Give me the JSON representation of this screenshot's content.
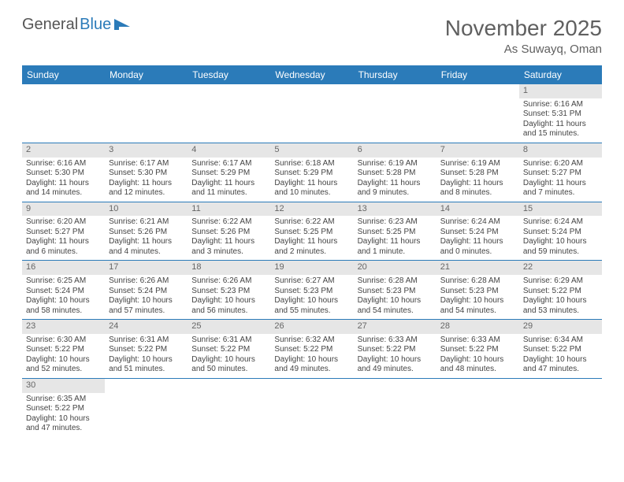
{
  "logo": {
    "text1": "General",
    "text2": "Blue"
  },
  "title": "November 2025",
  "location": "As Suwayq, Oman",
  "colors": {
    "header_bg": "#2b7bb9",
    "header_text": "#ffffff",
    "daynum_bg": "#e6e6e6",
    "row_border": "#2b7bb9",
    "page_bg": "#ffffff",
    "text": "#444444"
  },
  "weekdays": [
    "Sunday",
    "Monday",
    "Tuesday",
    "Wednesday",
    "Thursday",
    "Friday",
    "Saturday"
  ],
  "firstDayOffset": 6,
  "days": [
    {
      "n": 1,
      "sunrise": "6:16 AM",
      "sunset": "5:31 PM",
      "daylight": "11 hours and 15 minutes."
    },
    {
      "n": 2,
      "sunrise": "6:16 AM",
      "sunset": "5:30 PM",
      "daylight": "11 hours and 14 minutes."
    },
    {
      "n": 3,
      "sunrise": "6:17 AM",
      "sunset": "5:30 PM",
      "daylight": "11 hours and 12 minutes."
    },
    {
      "n": 4,
      "sunrise": "6:17 AM",
      "sunset": "5:29 PM",
      "daylight": "11 hours and 11 minutes."
    },
    {
      "n": 5,
      "sunrise": "6:18 AM",
      "sunset": "5:29 PM",
      "daylight": "11 hours and 10 minutes."
    },
    {
      "n": 6,
      "sunrise": "6:19 AM",
      "sunset": "5:28 PM",
      "daylight": "11 hours and 9 minutes."
    },
    {
      "n": 7,
      "sunrise": "6:19 AM",
      "sunset": "5:28 PM",
      "daylight": "11 hours and 8 minutes."
    },
    {
      "n": 8,
      "sunrise": "6:20 AM",
      "sunset": "5:27 PM",
      "daylight": "11 hours and 7 minutes."
    },
    {
      "n": 9,
      "sunrise": "6:20 AM",
      "sunset": "5:27 PM",
      "daylight": "11 hours and 6 minutes."
    },
    {
      "n": 10,
      "sunrise": "6:21 AM",
      "sunset": "5:26 PM",
      "daylight": "11 hours and 4 minutes."
    },
    {
      "n": 11,
      "sunrise": "6:22 AM",
      "sunset": "5:26 PM",
      "daylight": "11 hours and 3 minutes."
    },
    {
      "n": 12,
      "sunrise": "6:22 AM",
      "sunset": "5:25 PM",
      "daylight": "11 hours and 2 minutes."
    },
    {
      "n": 13,
      "sunrise": "6:23 AM",
      "sunset": "5:25 PM",
      "daylight": "11 hours and 1 minute."
    },
    {
      "n": 14,
      "sunrise": "6:24 AM",
      "sunset": "5:24 PM",
      "daylight": "11 hours and 0 minutes."
    },
    {
      "n": 15,
      "sunrise": "6:24 AM",
      "sunset": "5:24 PM",
      "daylight": "10 hours and 59 minutes."
    },
    {
      "n": 16,
      "sunrise": "6:25 AM",
      "sunset": "5:24 PM",
      "daylight": "10 hours and 58 minutes."
    },
    {
      "n": 17,
      "sunrise": "6:26 AM",
      "sunset": "5:24 PM",
      "daylight": "10 hours and 57 minutes."
    },
    {
      "n": 18,
      "sunrise": "6:26 AM",
      "sunset": "5:23 PM",
      "daylight": "10 hours and 56 minutes."
    },
    {
      "n": 19,
      "sunrise": "6:27 AM",
      "sunset": "5:23 PM",
      "daylight": "10 hours and 55 minutes."
    },
    {
      "n": 20,
      "sunrise": "6:28 AM",
      "sunset": "5:23 PM",
      "daylight": "10 hours and 54 minutes."
    },
    {
      "n": 21,
      "sunrise": "6:28 AM",
      "sunset": "5:23 PM",
      "daylight": "10 hours and 54 minutes."
    },
    {
      "n": 22,
      "sunrise": "6:29 AM",
      "sunset": "5:22 PM",
      "daylight": "10 hours and 53 minutes."
    },
    {
      "n": 23,
      "sunrise": "6:30 AM",
      "sunset": "5:22 PM",
      "daylight": "10 hours and 52 minutes."
    },
    {
      "n": 24,
      "sunrise": "6:31 AM",
      "sunset": "5:22 PM",
      "daylight": "10 hours and 51 minutes."
    },
    {
      "n": 25,
      "sunrise": "6:31 AM",
      "sunset": "5:22 PM",
      "daylight": "10 hours and 50 minutes."
    },
    {
      "n": 26,
      "sunrise": "6:32 AM",
      "sunset": "5:22 PM",
      "daylight": "10 hours and 49 minutes."
    },
    {
      "n": 27,
      "sunrise": "6:33 AM",
      "sunset": "5:22 PM",
      "daylight": "10 hours and 49 minutes."
    },
    {
      "n": 28,
      "sunrise": "6:33 AM",
      "sunset": "5:22 PM",
      "daylight": "10 hours and 48 minutes."
    },
    {
      "n": 29,
      "sunrise": "6:34 AM",
      "sunset": "5:22 PM",
      "daylight": "10 hours and 47 minutes."
    },
    {
      "n": 30,
      "sunrise": "6:35 AM",
      "sunset": "5:22 PM",
      "daylight": "10 hours and 47 minutes."
    }
  ],
  "labels": {
    "sunrise": "Sunrise:",
    "sunset": "Sunset:",
    "daylight": "Daylight:"
  }
}
